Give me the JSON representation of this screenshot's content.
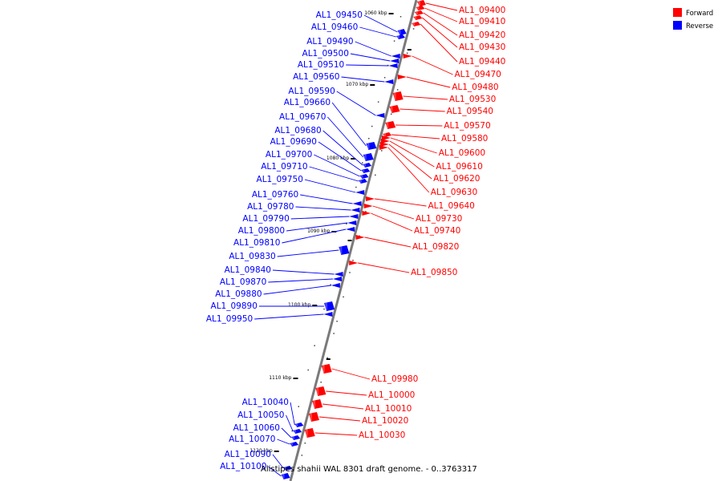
{
  "caption": "Alistipes shahii WAL 8301 draft genome. - 0..3763317",
  "legend": [
    {
      "label": "Forward",
      "color": "#ff0000"
    },
    {
      "label": "Reverse",
      "color": "#0000ff"
    }
  ],
  "colors": {
    "forward": "#ff0000",
    "reverse": "#0000ff",
    "backbone": "#7a7a7a"
  },
  "ticks": [
    "1060 kbp",
    "1070 kbp",
    "1080 kbp",
    "1090 kbp",
    "1100 kbp",
    "1110 kbp",
    "1120 kbp"
  ],
  "forward_genes": [
    "AL1_09400",
    "AL1_09410",
    "AL1_09420",
    "AL1_09430",
    "AL1_09440",
    "AL1_09470",
    "AL1_09480",
    "AL1_09530",
    "AL1_09540",
    "AL1_09570",
    "AL1_09580",
    "AL1_09600",
    "AL1_09610",
    "AL1_09620",
    "AL1_09630",
    "AL1_09640",
    "AL1_09730",
    "AL1_09740",
    "AL1_09820",
    "AL1_09850",
    "AL1_09980",
    "AL1_10000",
    "AL1_10010",
    "AL1_10020",
    "AL1_10030"
  ],
  "reverse_genes": [
    "AL1_09450",
    "AL1_09460",
    "AL1_09490",
    "AL1_09500",
    "AL1_09510",
    "AL1_09560",
    "AL1_09590",
    "AL1_09660",
    "AL1_09670",
    "AL1_09680",
    "AL1_09690",
    "AL1_09700",
    "AL1_09710",
    "AL1_09750",
    "AL1_09760",
    "AL1_09780",
    "AL1_09790",
    "AL1_09800",
    "AL1_09810",
    "AL1_09830",
    "AL1_09840",
    "AL1_09870",
    "AL1_09880",
    "AL1_09890",
    "AL1_09950",
    "AL1_10040",
    "AL1_10050",
    "AL1_10060",
    "AL1_10070",
    "AL1_10090",
    "AL1_10100"
  ]
}
